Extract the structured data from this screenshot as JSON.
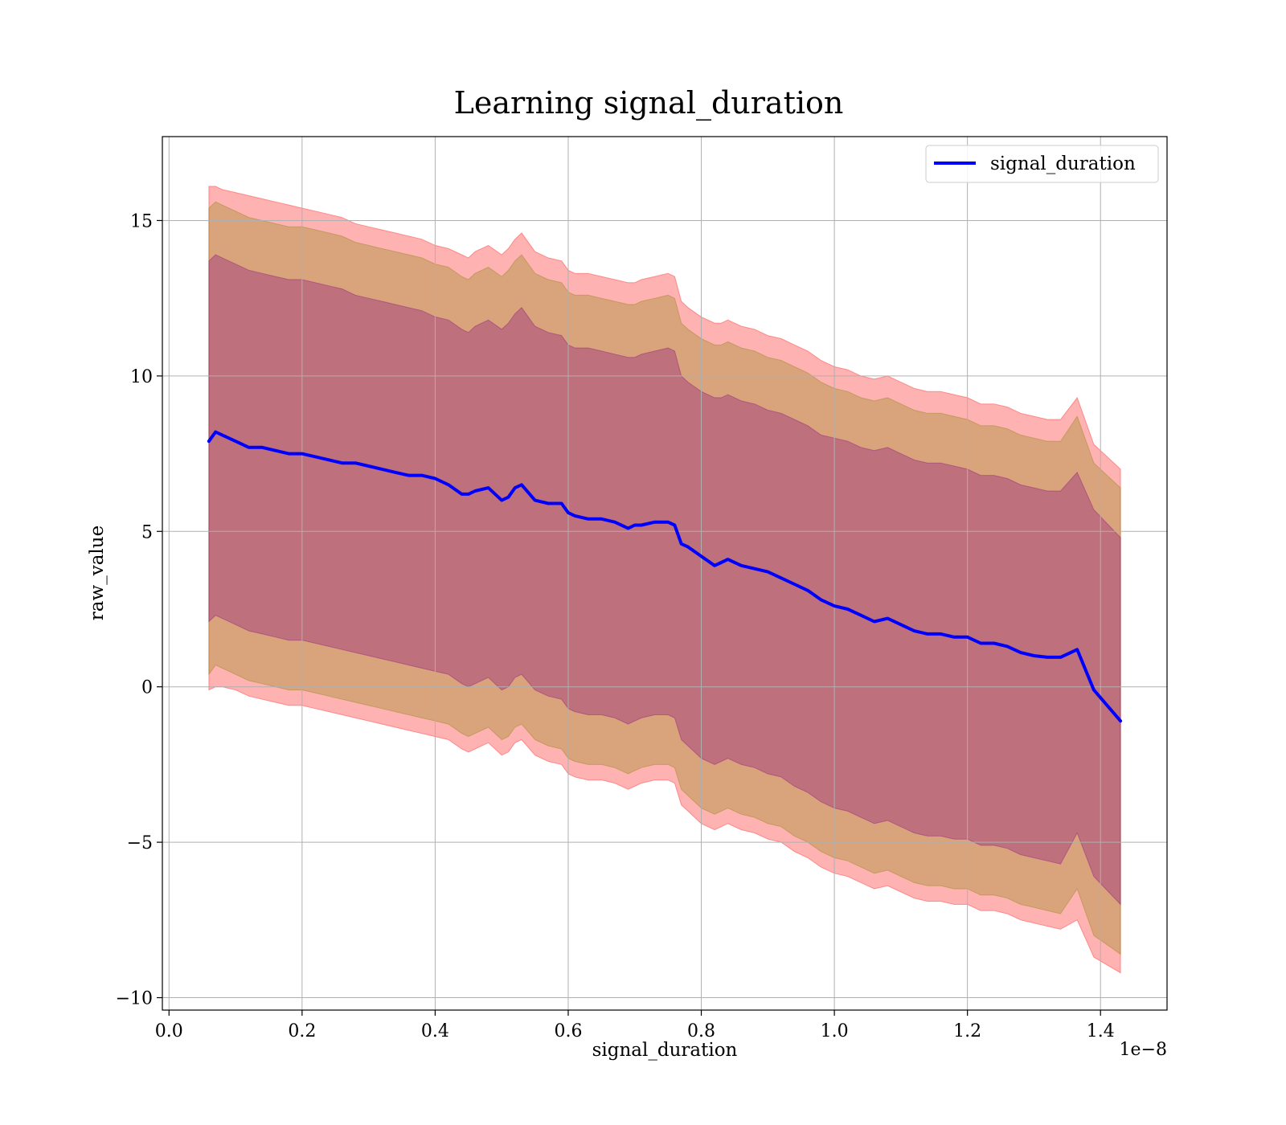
{
  "chart_data": {
    "type": "area",
    "title": "Learning signal_duration",
    "xlabel": "signal_duration",
    "ylabel": "raw_value",
    "x_offset_text": "1e−8",
    "xlim": [
      -0.01,
      1.5
    ],
    "ylim": [
      -10.4,
      17.7
    ],
    "x_ticks": [
      {
        "value": 0.0,
        "label": "0.0"
      },
      {
        "value": 0.2,
        "label": "0.2"
      },
      {
        "value": 0.4,
        "label": "0.4"
      },
      {
        "value": 0.6,
        "label": "0.6"
      },
      {
        "value": 0.8,
        "label": "0.8"
      },
      {
        "value": 1.0,
        "label": "1.0"
      },
      {
        "value": 1.2,
        "label": "1.2"
      },
      {
        "value": 1.4,
        "label": "1.4"
      }
    ],
    "y_ticks": [
      {
        "value": -10,
        "label": "−10"
      },
      {
        "value": -5,
        "label": "−5"
      },
      {
        "value": 0,
        "label": "0"
      },
      {
        "value": 5,
        "label": "5"
      },
      {
        "value": 10,
        "label": "10"
      },
      {
        "value": 15,
        "label": "15"
      }
    ],
    "grid": true,
    "legend": {
      "position": "top-right",
      "entries": [
        "signal_duration"
      ]
    },
    "colors": {
      "line": "#0000ff",
      "band_outer": "#ff0000",
      "band_middle": "#808000",
      "band_inner": "#800080"
    },
    "x": [
      0.06,
      0.07,
      0.08,
      0.1,
      0.12,
      0.14,
      0.16,
      0.18,
      0.2,
      0.22,
      0.24,
      0.26,
      0.28,
      0.3,
      0.32,
      0.34,
      0.36,
      0.38,
      0.4,
      0.42,
      0.44,
      0.45,
      0.46,
      0.48,
      0.5,
      0.51,
      0.52,
      0.53,
      0.55,
      0.57,
      0.59,
      0.6,
      0.61,
      0.63,
      0.65,
      0.67,
      0.69,
      0.7,
      0.71,
      0.73,
      0.75,
      0.76,
      0.77,
      0.78,
      0.8,
      0.82,
      0.83,
      0.84,
      0.86,
      0.88,
      0.9,
      0.92,
      0.94,
      0.96,
      0.98,
      1.0,
      1.02,
      1.04,
      1.06,
      1.08,
      1.1,
      1.12,
      1.14,
      1.16,
      1.18,
      1.2,
      1.22,
      1.24,
      1.26,
      1.28,
      1.3,
      1.32,
      1.34,
      1.365,
      1.39,
      1.43
    ],
    "series": [
      {
        "name": "signal_duration",
        "values": [
          7.9,
          8.2,
          8.1,
          7.9,
          7.7,
          7.7,
          7.6,
          7.5,
          7.5,
          7.4,
          7.3,
          7.2,
          7.2,
          7.1,
          7.0,
          6.9,
          6.8,
          6.8,
          6.7,
          6.5,
          6.2,
          6.2,
          6.3,
          6.4,
          6.0,
          6.1,
          6.4,
          6.5,
          6.0,
          5.9,
          5.9,
          5.6,
          5.5,
          5.4,
          5.4,
          5.3,
          5.1,
          5.2,
          5.2,
          5.3,
          5.3,
          5.2,
          4.6,
          4.5,
          4.2,
          3.9,
          4.0,
          4.1,
          3.9,
          3.8,
          3.7,
          3.5,
          3.3,
          3.1,
          2.8,
          2.6,
          2.5,
          2.3,
          2.1,
          2.2,
          2.0,
          1.8,
          1.7,
          1.7,
          1.6,
          1.6,
          1.4,
          1.4,
          1.3,
          1.1,
          1.0,
          0.95,
          0.95,
          1.2,
          -0.1,
          -1.1
        ]
      }
    ],
    "bands": [
      {
        "fill": "band_outer",
        "upper": [
          16.1,
          16.1,
          16.0,
          15.9,
          15.8,
          15.7,
          15.6,
          15.5,
          15.4,
          15.3,
          15.2,
          15.1,
          14.9,
          14.8,
          14.7,
          14.6,
          14.5,
          14.4,
          14.2,
          14.1,
          13.9,
          13.8,
          14.0,
          14.2,
          13.9,
          14.1,
          14.4,
          14.6,
          14.0,
          13.8,
          13.7,
          13.4,
          13.3,
          13.3,
          13.2,
          13.1,
          13.0,
          13.0,
          13.1,
          13.2,
          13.3,
          13.2,
          12.4,
          12.2,
          11.9,
          11.7,
          11.7,
          11.8,
          11.6,
          11.5,
          11.3,
          11.2,
          11.0,
          10.8,
          10.5,
          10.3,
          10.2,
          10.0,
          9.9,
          10.0,
          9.8,
          9.6,
          9.5,
          9.5,
          9.4,
          9.3,
          9.1,
          9.1,
          9.0,
          8.8,
          8.7,
          8.6,
          8.6,
          9.3,
          7.8,
          7.0
        ],
        "lower": [
          -0.1,
          0.0,
          0.0,
          -0.1,
          -0.3,
          -0.4,
          -0.5,
          -0.6,
          -0.6,
          -0.7,
          -0.8,
          -0.9,
          -1.0,
          -1.1,
          -1.2,
          -1.3,
          -1.4,
          -1.5,
          -1.6,
          -1.7,
          -2.0,
          -2.1,
          -2.0,
          -1.8,
          -2.2,
          -2.1,
          -1.8,
          -1.7,
          -2.2,
          -2.4,
          -2.5,
          -2.8,
          -2.9,
          -3.0,
          -3.0,
          -3.1,
          -3.3,
          -3.2,
          -3.1,
          -3.0,
          -3.0,
          -3.1,
          -3.8,
          -4.0,
          -4.4,
          -4.6,
          -4.5,
          -4.4,
          -4.6,
          -4.7,
          -4.9,
          -5.0,
          -5.3,
          -5.5,
          -5.8,
          -6.0,
          -6.1,
          -6.3,
          -6.5,
          -6.4,
          -6.6,
          -6.8,
          -6.9,
          -6.9,
          -7.0,
          -7.0,
          -7.2,
          -7.2,
          -7.3,
          -7.5,
          -7.6,
          -7.7,
          -7.8,
          -7.5,
          -8.7,
          -9.2
        ]
      },
      {
        "fill": "band_middle",
        "upper": [
          15.4,
          15.6,
          15.5,
          15.3,
          15.1,
          15.0,
          14.9,
          14.8,
          14.8,
          14.7,
          14.6,
          14.5,
          14.3,
          14.2,
          14.1,
          14.0,
          13.9,
          13.8,
          13.6,
          13.5,
          13.2,
          13.1,
          13.3,
          13.5,
          13.2,
          13.4,
          13.7,
          13.9,
          13.3,
          13.1,
          13.0,
          12.7,
          12.6,
          12.6,
          12.5,
          12.4,
          12.3,
          12.3,
          12.4,
          12.5,
          12.6,
          12.5,
          11.7,
          11.5,
          11.2,
          11.0,
          11.0,
          11.1,
          10.9,
          10.8,
          10.6,
          10.5,
          10.3,
          10.1,
          9.8,
          9.6,
          9.5,
          9.3,
          9.2,
          9.3,
          9.1,
          8.9,
          8.8,
          8.8,
          8.7,
          8.6,
          8.4,
          8.4,
          8.3,
          8.1,
          8.0,
          7.9,
          7.9,
          8.7,
          7.2,
          6.4
        ],
        "lower": [
          0.4,
          0.7,
          0.6,
          0.4,
          0.2,
          0.1,
          0.0,
          -0.1,
          -0.1,
          -0.2,
          -0.3,
          -0.4,
          -0.5,
          -0.6,
          -0.7,
          -0.8,
          -0.9,
          -1.0,
          -1.1,
          -1.2,
          -1.5,
          -1.6,
          -1.5,
          -1.3,
          -1.7,
          -1.6,
          -1.3,
          -1.2,
          -1.7,
          -1.9,
          -2.0,
          -2.3,
          -2.4,
          -2.5,
          -2.5,
          -2.6,
          -2.8,
          -2.7,
          -2.6,
          -2.5,
          -2.5,
          -2.6,
          -3.3,
          -3.5,
          -3.9,
          -4.1,
          -4.0,
          -3.9,
          -4.1,
          -4.2,
          -4.4,
          -4.5,
          -4.8,
          -5.0,
          -5.3,
          -5.5,
          -5.6,
          -5.8,
          -6.0,
          -5.9,
          -6.1,
          -6.3,
          -6.4,
          -6.4,
          -6.5,
          -6.5,
          -6.7,
          -6.7,
          -6.8,
          -7.0,
          -7.1,
          -7.2,
          -7.3,
          -6.5,
          -8.0,
          -8.6
        ]
      },
      {
        "fill": "band_inner",
        "upper": [
          13.7,
          13.9,
          13.8,
          13.6,
          13.4,
          13.3,
          13.2,
          13.1,
          13.1,
          13.0,
          12.9,
          12.8,
          12.6,
          12.5,
          12.4,
          12.3,
          12.2,
          12.1,
          11.9,
          11.8,
          11.5,
          11.4,
          11.6,
          11.8,
          11.5,
          11.7,
          12.0,
          12.2,
          11.6,
          11.4,
          11.3,
          11.0,
          10.9,
          10.9,
          10.8,
          10.7,
          10.6,
          10.6,
          10.7,
          10.8,
          10.9,
          10.8,
          10.0,
          9.8,
          9.5,
          9.3,
          9.3,
          9.4,
          9.2,
          9.1,
          8.9,
          8.8,
          8.6,
          8.4,
          8.1,
          8.0,
          7.9,
          7.7,
          7.6,
          7.7,
          7.5,
          7.3,
          7.2,
          7.2,
          7.1,
          7.0,
          6.8,
          6.8,
          6.7,
          6.5,
          6.4,
          6.3,
          6.3,
          6.9,
          5.7,
          4.8
        ],
        "lower": [
          2.1,
          2.3,
          2.2,
          2.0,
          1.8,
          1.7,
          1.6,
          1.5,
          1.5,
          1.4,
          1.3,
          1.2,
          1.1,
          1.0,
          0.9,
          0.8,
          0.7,
          0.6,
          0.5,
          0.4,
          0.1,
          0.0,
          0.1,
          0.3,
          -0.1,
          0.0,
          0.3,
          0.4,
          -0.1,
          -0.3,
          -0.4,
          -0.7,
          -0.8,
          -0.9,
          -0.9,
          -1.0,
          -1.2,
          -1.1,
          -1.0,
          -0.9,
          -0.9,
          -1.0,
          -1.7,
          -1.9,
          -2.3,
          -2.5,
          -2.4,
          -2.3,
          -2.5,
          -2.6,
          -2.8,
          -2.9,
          -3.2,
          -3.4,
          -3.7,
          -3.9,
          -4.0,
          -4.2,
          -4.4,
          -4.3,
          -4.5,
          -4.7,
          -4.8,
          -4.8,
          -4.9,
          -4.9,
          -5.1,
          -5.1,
          -5.2,
          -5.4,
          -5.5,
          -5.6,
          -5.7,
          -4.7,
          -6.1,
          -7.0
        ]
      }
    ]
  }
}
